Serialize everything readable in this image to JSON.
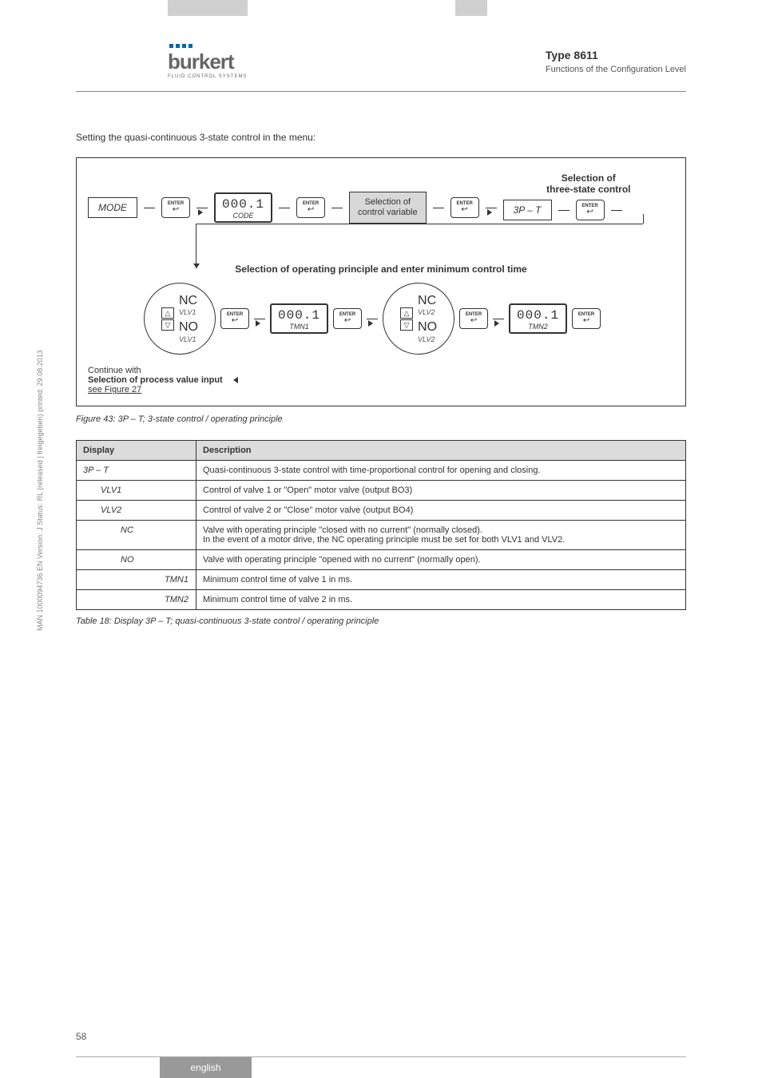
{
  "header": {
    "logo_text": "burkert",
    "logo_sub": "FLUID CONTROL SYSTEMS",
    "type": "Type 8611",
    "subtitle": "Functions of the Configuration Level"
  },
  "intro": "Setting the quasi-continuous 3-state control in the menu:",
  "diagram": {
    "mode": "MODE",
    "enter": "ENTER",
    "back_glyph": "↩",
    "code_lcd": {
      "big": "000.1",
      "small": "CODE"
    },
    "tmn1_lcd": {
      "big": "000.1",
      "small": "TMN1"
    },
    "tmn2_lcd": {
      "big": "000.1",
      "small": "TMN2"
    },
    "sel_var": "Selection of\ncontrol variable",
    "sel_head": "Selection of\nthree-state control",
    "threep": "3P – T",
    "section2": "Selection of operating principle and enter minimum control time",
    "up": "△",
    "down": "▽",
    "vlv1": {
      "nc": "NC",
      "nc_sub": "VLV1",
      "no": "NO",
      "no_sub": "VLV1"
    },
    "vlv2": {
      "nc": "NC",
      "nc_sub": "VLV2",
      "no": "NO",
      "no_sub": "VLV2"
    },
    "continue": "Continue with",
    "sel_proc": "Selection of process value input",
    "see_fig": "see Figure 27"
  },
  "fig_caption": "Figure 43:     3P – T; 3-state control / operating principle",
  "table": {
    "h1": "Display",
    "h2": "Description",
    "rows": [
      {
        "c1": "3P – T",
        "indent": 0,
        "c2": "Quasi-continuous 3-state control with time-proportional control for opening and closing."
      },
      {
        "c1": "VLV1",
        "indent": 1,
        "c2": "Control of valve 1 or \"Open\" motor valve (output BO3)"
      },
      {
        "c1": "VLV2",
        "indent": 1,
        "c2": "Control of valve 2 or \"Close\" motor valve (output BO4)"
      },
      {
        "c1": "NC",
        "indent": 2,
        "c2": "Valve with operating principle \"closed with no current\" (normally closed).\nIn the event of a motor drive, the NC operating principle must be set for both VLV1 and VLV2."
      },
      {
        "c1": "NO",
        "indent": 2,
        "c2": "Valve with operating principle \"opened with no current\" (normally open)."
      },
      {
        "c1": "TMN1",
        "indent": 3,
        "c2": "Minimum control time of valve 1 in ms."
      },
      {
        "c1": "TMN2",
        "indent": 3,
        "c2": "Minimum control time of valve 2 in ms."
      }
    ]
  },
  "table_caption": "Table 18:       Display 3P – T; quasi-continuous 3-state control / operating principle",
  "side_text": "MAN 1000094736 EN Version: J Status: RL (released | freigegeben) printed: 29.08.2013",
  "page_num": "58",
  "footer": "english"
}
